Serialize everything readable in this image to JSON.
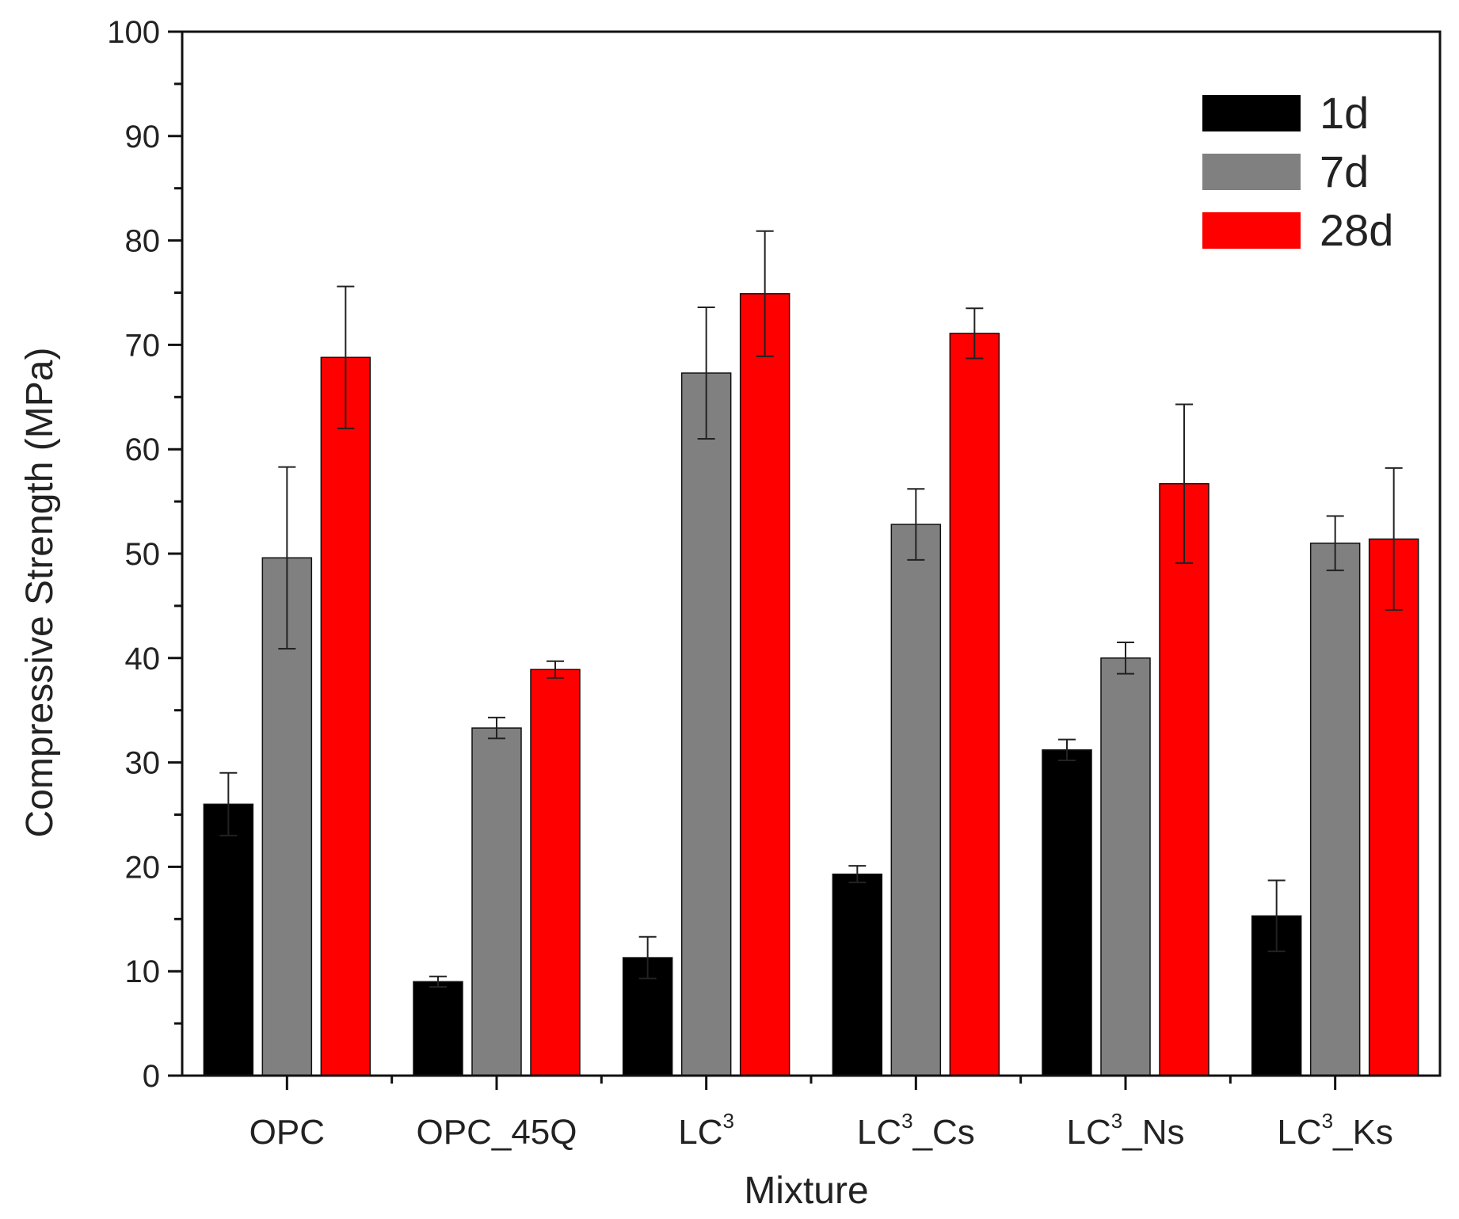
{
  "chart_data": {
    "type": "bar",
    "title": "",
    "xlabel": "Mixture",
    "ylabel": "Compressive Strength (MPa)",
    "ylim": [
      0,
      100
    ],
    "yticks": [
      "0",
      "10",
      "20",
      "30",
      "40",
      "50",
      "60",
      "70",
      "80",
      "90",
      "100"
    ],
    "categories": [
      {
        "base": "OPC",
        "sup": "",
        "suffix": ""
      },
      {
        "base": "OPC_45Q",
        "sup": "",
        "suffix": ""
      },
      {
        "base": "LC",
        "sup": "3",
        "suffix": ""
      },
      {
        "base": "LC",
        "sup": "3",
        "suffix": "_Cs"
      },
      {
        "base": "LC",
        "sup": "3",
        "suffix": "_Ns"
      },
      {
        "base": "LC",
        "sup": "3",
        "suffix": "_Ks"
      }
    ],
    "series": [
      {
        "name": "1d",
        "color": "#000000",
        "values": [
          26.0,
          9.0,
          11.3,
          19.3,
          31.2,
          15.3
        ],
        "errors": [
          3.0,
          0.5,
          2.0,
          0.8,
          1.0,
          3.4
        ]
      },
      {
        "name": "7d",
        "color": "#808080",
        "values": [
          49.6,
          33.3,
          67.3,
          52.8,
          40.0,
          51.0
        ],
        "errors": [
          8.7,
          1.0,
          6.3,
          3.4,
          1.5,
          2.6
        ]
      },
      {
        "name": "28d",
        "color": "#ff0000",
        "values": [
          68.8,
          38.9,
          74.9,
          71.1,
          56.7,
          51.4
        ],
        "errors": [
          6.8,
          0.8,
          6.0,
          2.4,
          7.6,
          6.8
        ]
      }
    ],
    "legend_position": "top-right",
    "grid": false
  }
}
